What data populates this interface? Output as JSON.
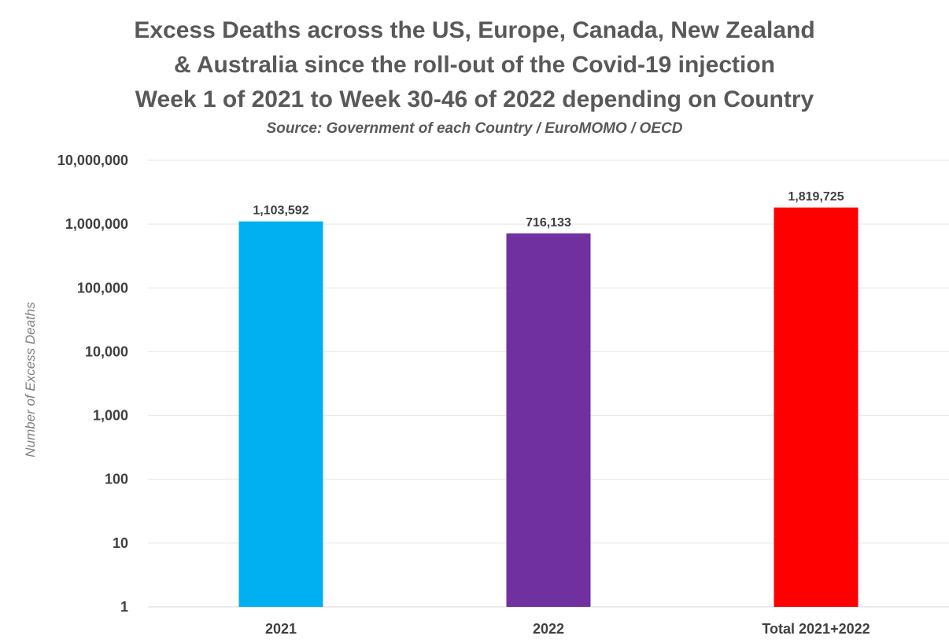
{
  "chart_data": {
    "type": "bar",
    "title_lines": [
      "Excess Deaths across the US, Europe, Canada, New Zealand",
      "& Australia since the roll-out of the Covid-19 injection",
      "Week 1 of 2021 to Week 30-46 of 2022 depending on Country"
    ],
    "subtitle": "Source: Government of each Country / EuroMOMO / OECD",
    "ylabel": "Number of Excess Deaths",
    "xlabel": "",
    "yscale": "log",
    "ylim": [
      1,
      10000000
    ],
    "yticks": [
      1,
      10,
      100,
      1000,
      10000,
      100000,
      1000000,
      10000000
    ],
    "ytick_labels": [
      "1",
      "10",
      "100",
      "1,000",
      "10,000",
      "100,000",
      "1,000,000",
      "10,000,000"
    ],
    "grid": true,
    "legend": "none",
    "categories": [
      "2021",
      "2022",
      "Total 2021+2022"
    ],
    "values": [
      1103592,
      716133,
      1819725
    ],
    "value_labels": [
      "1,103,592",
      "716,133",
      "1,819,725"
    ],
    "colors": [
      "#00b0f0",
      "#7030a0",
      "#ff0000"
    ]
  }
}
